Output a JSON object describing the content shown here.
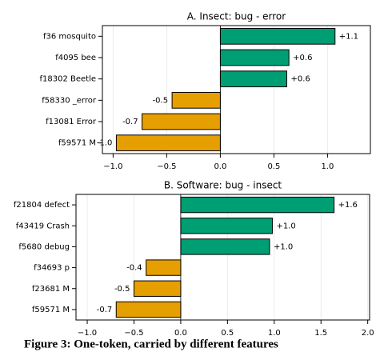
{
  "chart_data": [
    {
      "type": "barh",
      "title": "A. Insect: bug - error",
      "categories": [
        "f36 mosquito",
        "f4095 bee",
        "f18302 Beetle",
        "f58330 _error",
        "f13081 Error",
        "f59571 M"
      ],
      "values": [
        1.07,
        0.64,
        0.62,
        -0.45,
        -0.73,
        -0.97
      ],
      "value_labels": [
        "+1.1",
        "+0.6",
        "+0.6",
        "-0.5",
        "-0.7",
        "-1.0"
      ],
      "colors": [
        "#009e73",
        "#009e73",
        "#009e73",
        "#e69f00",
        "#e69f00",
        "#e69f00"
      ],
      "xlim": [
        -1.1,
        1.4
      ],
      "xticks": [
        {
          "value": -1,
          "label": "−1.0"
        },
        {
          "value": -0.5,
          "label": "−0.5"
        },
        {
          "value": 0,
          "label": "0.0"
        },
        {
          "value": 0.5,
          "label": "0.5"
        },
        {
          "value": 1,
          "label": "1.0"
        }
      ],
      "grid": true
    },
    {
      "type": "barh",
      "title": "B. Software: bug - insect",
      "categories": [
        "f21804 defect",
        "f43419 Crash",
        "f5680 debug",
        "f34693 p",
        "f23681 M",
        "f59571 M"
      ],
      "values": [
        1.64,
        0.98,
        0.95,
        -0.37,
        -0.5,
        -0.69
      ],
      "value_labels": [
        "+1.6",
        "+1.0",
        "+1.0",
        "-0.4",
        "-0.5",
        "-0.7"
      ],
      "colors": [
        "#009e73",
        "#009e73",
        "#009e73",
        "#e69f00",
        "#e69f00",
        "#e69f00"
      ],
      "xlim": [
        -1.12,
        2.02
      ],
      "xticks": [
        {
          "value": -1,
          "label": "−1.0"
        },
        {
          "value": -0.5,
          "label": "−0.5"
        },
        {
          "value": 0,
          "label": "0.0"
        },
        {
          "value": 0.5,
          "label": "0.5"
        },
        {
          "value": 1,
          "label": "1.0"
        },
        {
          "value": 1.5,
          "label": "1.5"
        },
        {
          "value": 2,
          "label": "2.0"
        }
      ],
      "grid": true
    }
  ],
  "caption": "Figure 3: One-token, carried by different features"
}
